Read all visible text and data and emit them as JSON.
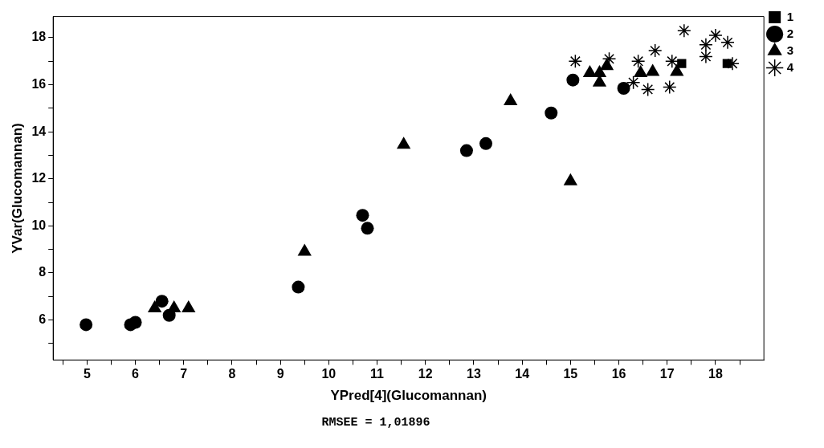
{
  "chart_data": {
    "type": "scatter",
    "xlabel": "YPred[4](Glucomannan)",
    "ylabel": "YVar(Glucomannan)",
    "xlim": [
      4.3,
      19
    ],
    "ylim": [
      4.3,
      18.9
    ],
    "xticks": [
      {
        "value": 4.5,
        "label": null
      },
      5,
      {
        "value": 5.5,
        "label": null
      },
      6,
      {
        "value": 6.5,
        "label": null
      },
      7,
      {
        "value": 7.5,
        "label": null
      },
      8,
      {
        "value": 8.5,
        "label": null
      },
      9,
      {
        "value": 9.5,
        "label": null
      },
      10,
      {
        "value": 10.5,
        "label": null
      },
      11,
      {
        "value": 11.5,
        "label": null
      },
      12,
      {
        "value": 12.5,
        "label": null
      },
      13,
      {
        "value": 13.5,
        "label": null
      },
      14,
      {
        "value": 14.5,
        "label": null
      },
      15,
      {
        "value": 15.5,
        "label": null
      },
      16,
      {
        "value": 16.5,
        "label": null
      },
      17,
      {
        "value": 17.5,
        "label": null
      },
      18,
      {
        "value": 18.5,
        "label": null
      }
    ],
    "yticks": [
      {
        "value": 5,
        "label": null
      },
      6,
      {
        "value": 7,
        "label": null
      },
      8,
      {
        "value": 9,
        "label": null
      },
      10,
      {
        "value": 11,
        "label": null
      },
      12,
      {
        "value": 13,
        "label": null
      },
      14,
      {
        "value": 15,
        "label": null
      },
      16,
      {
        "value": 17,
        "label": null
      },
      18
    ],
    "grid": false,
    "legend": "top right",
    "annotations": [
      "RMSEE = 1,01896"
    ],
    "series": [
      {
        "name": "1",
        "color": "#000000",
        "marker": "square",
        "x": [
          17.3,
          18.24
        ],
        "values": [
          16.9,
          16.9
        ]
      },
      {
        "name": "2",
        "color": "#000000",
        "marker": "circle",
        "x": [
          4.98,
          5.9,
          6.0,
          6.55,
          6.7,
          9.37,
          10.7,
          10.8,
          12.85,
          13.25,
          14.6,
          15.05,
          16.1
        ],
        "values": [
          5.8,
          5.8,
          5.9,
          6.8,
          6.2,
          7.4,
          10.45,
          9.9,
          13.2,
          13.5,
          14.8,
          16.2,
          15.85
        ]
      },
      {
        "name": "3",
        "color": "#000000",
        "marker": "triangle",
        "x": [
          6.4,
          6.8,
          7.1,
          9.5,
          11.55,
          13.76,
          15.0,
          15.4,
          15.6,
          15.6,
          15.75,
          16.45,
          16.7,
          17.2
        ],
        "values": [
          6.5,
          6.5,
          6.5,
          8.9,
          13.45,
          15.3,
          11.9,
          16.5,
          16.5,
          16.1,
          16.8,
          16.5,
          16.55,
          16.55
        ]
      },
      {
        "name": "4",
        "color": "#000000",
        "marker": "cross",
        "x": [
          15.1,
          15.8,
          16.4,
          16.3,
          16.6,
          16.75,
          17.05,
          17.1,
          17.35,
          17.8,
          17.8,
          18.0,
          18.25,
          18.35
        ],
        "values": [
          17.0,
          17.1,
          17.0,
          16.1,
          15.8,
          17.45,
          15.9,
          17.0,
          18.3,
          17.7,
          17.2,
          18.1,
          17.8,
          16.9
        ]
      }
    ]
  }
}
